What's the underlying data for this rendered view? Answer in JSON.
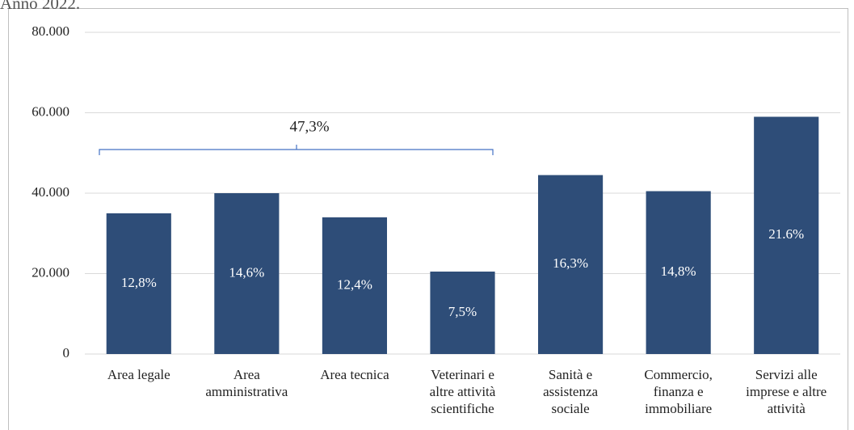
{
  "chart_data": {
    "type": "bar",
    "title": "Anno 2022.",
    "categories": [
      "Area legale",
      "Area\namministrativa",
      "Area tecnica",
      "Veterinari e\naltre attività\nscientifiche",
      "Sanità e\nassistenza\nsociale",
      "Commercio,\nfinanza e\nimmobiliare",
      "Servizi alle\nimprese e altre\nattività"
    ],
    "values": [
      35000,
      40000,
      34000,
      20500,
      44500,
      40500,
      59000
    ],
    "percent_labels": [
      "12,8%",
      "14,6%",
      "12,4%",
      "7,5%",
      "16,3%",
      "14,8%",
      "21.6%"
    ],
    "annotation": "47,3%",
    "color": "#2e4d78",
    "ylim": [
      0,
      80000
    ],
    "yticks": [
      0,
      {
        "value": 20000,
        "label": "20.000"
      },
      {
        "value": 40000,
        "label": "40.000"
      },
      {
        "value": 60000,
        "label": "60.000"
      },
      {
        "value": 80000,
        "label": "80.000"
      }
    ],
    "grid": true
  }
}
